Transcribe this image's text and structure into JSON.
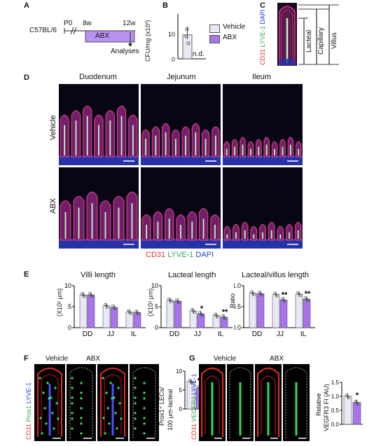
{
  "panel_labels": {
    "a": "A",
    "b": "B",
    "c": "C",
    "d": "D",
    "e": "E",
    "f": "F",
    "g": "G"
  },
  "panel_a": {
    "strain": "C57BL/6",
    "p0": "P0",
    "start": "8w",
    "end": "12w",
    "treatment": "ABX",
    "analyses": "Analyses",
    "colors": {
      "abx_bar": "#b892f0"
    }
  },
  "panel_b": {
    "ylabel": "CFU/mg (x10³)",
    "ticks": [
      "0",
      "10"
    ],
    "nd": "n.d."
  },
  "legend": {
    "vehicle": "Vehicle",
    "abx": "ABX",
    "colors": {
      "vehicle": "#e9e9f5",
      "abx": "#a874ee"
    }
  },
  "panel_c": {
    "stain_cd31": "CD31",
    "stain_lyve1": "LYVE-1",
    "stain_dapi": "DAPI",
    "lacteal": "Lacteal",
    "capillary": "Capillary",
    "villus": "Villus"
  },
  "panel_d": {
    "cols": [
      "Duodenum",
      "Jejunum",
      "Ileum"
    ],
    "rows": [
      "Vehicle",
      "ABX"
    ],
    "stain_cd31": "CD31",
    "stain_lyve1": "LYVE-1",
    "stain_dapi": "DAPI"
  },
  "panel_e": {
    "titles": [
      "Villi length",
      "Lacteal length",
      "Lacteal/villus length"
    ],
    "ylabels": [
      "(X10² μm)",
      "(X10² μm)",
      "Ratio"
    ],
    "ticks1": [
      "0",
      "5",
      "10"
    ],
    "ticks2": [
      "0",
      "5",
      "10"
    ],
    "ticks3": [
      "0.0",
      "0.5",
      "1.0"
    ],
    "cats": [
      "DD",
      "JJ",
      "IL"
    ],
    "sig2": [
      "*",
      "**"
    ],
    "sig3": [
      "**",
      "**"
    ]
  },
  "panel_f": {
    "vehicle": "Vehicle",
    "abx": "ABX",
    "stain_cd31": "CD31",
    "stain_prox1": "Prox1",
    "stain_lyve1": "LYVE-1",
    "ylabel1": "Prox1⁺ LECs/",
    "ylabel2": "100 μm-lacteal",
    "ticks": [
      "0",
      "5",
      "10"
    ],
    "sig": "**"
  },
  "panel_g": {
    "vehicle": "Vehicle",
    "abx": "ABX",
    "stain_cd31": "CD31",
    "stain_vegfr3": "VEGFR3",
    "stain_lyve1": "LYVE-1",
    "ylabel1": "Relative",
    "ylabel2": "VEGFR3 FI (AU)",
    "ticks": [
      "0.0",
      "0.5",
      "1.0",
      "1.5"
    ],
    "sig": "*"
  },
  "chart_data": [
    {
      "type": "bar",
      "title": "Villi length",
      "ylabel": "(X10² μm)",
      "ylim": [
        0,
        10
      ],
      "categories": [
        "DD",
        "JJ",
        "IL"
      ],
      "series": [
        {
          "name": "Vehicle",
          "values": [
            7.8,
            5.2,
            3.7
          ]
        },
        {
          "name": "ABX",
          "values": [
            7.8,
            4.8,
            3.6
          ]
        }
      ]
    },
    {
      "type": "bar",
      "title": "Lacteal length",
      "ylabel": "(X10² μm)",
      "ylim": [
        0,
        10
      ],
      "categories": [
        "DD",
        "JJ",
        "IL"
      ],
      "series": [
        {
          "name": "Vehicle",
          "values": [
            6.5,
            4.0,
            2.9
          ]
        },
        {
          "name": "ABX",
          "values": [
            6.3,
            3.3,
            2.5
          ]
        }
      ]
    },
    {
      "type": "bar",
      "title": "Lacteal/villus length",
      "ylabel": "Ratio",
      "ylim": [
        0,
        1.0
      ],
      "categories": [
        "DD",
        "JJ",
        "IL"
      ],
      "series": [
        {
          "name": "Vehicle",
          "values": [
            0.82,
            0.79,
            0.8
          ]
        },
        {
          "name": "ABX",
          "values": [
            0.81,
            0.66,
            0.68
          ]
        }
      ]
    },
    {
      "type": "bar",
      "ylim": [
        0,
        10
      ],
      "categories": [
        "Vehicle",
        "ABX"
      ],
      "values": [
        7.2,
        5.6
      ]
    },
    {
      "type": "bar",
      "ylim": [
        0,
        1.5
      ],
      "categories": [
        "Vehicle",
        "ABX"
      ],
      "values": [
        1.0,
        0.78
      ]
    },
    {
      "type": "bar",
      "ylim": [
        0,
        15
      ],
      "categories": [
        "Vehicle",
        "ABX"
      ],
      "values": [
        9.5,
        0
      ]
    }
  ]
}
